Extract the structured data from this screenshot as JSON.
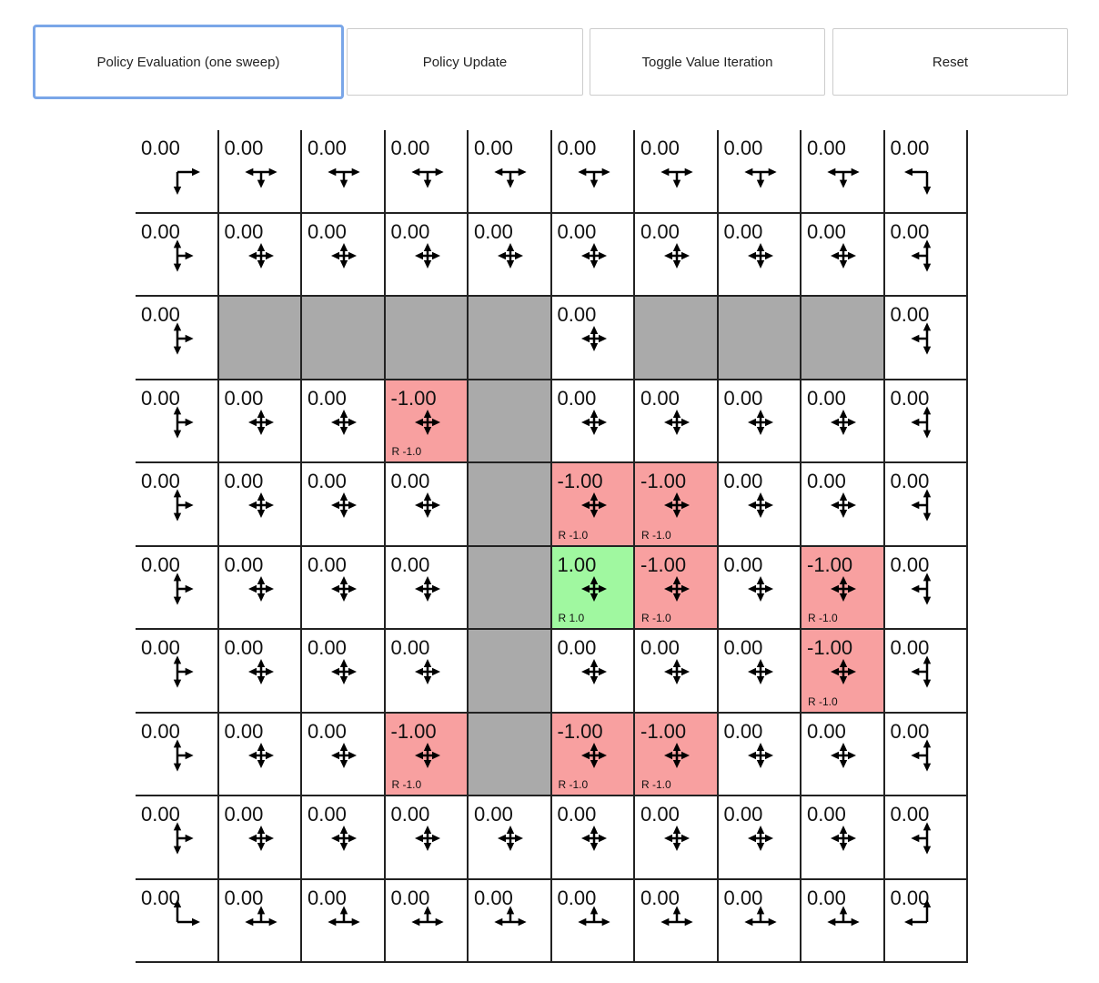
{
  "buttons": [
    {
      "label": "Policy Evaluation (one sweep)",
      "focused": true
    },
    {
      "label": "Policy Update"
    },
    {
      "label": "Toggle Value Iteration"
    },
    {
      "label": "Reset"
    }
  ],
  "colors": {
    "wall": "#aaaaaa",
    "negative": "#f8a0a0",
    "positive": "#a0f8a0"
  },
  "grid": {
    "rows": 10,
    "cols": 10,
    "walls": [
      [
        2,
        1
      ],
      [
        2,
        2
      ],
      [
        2,
        3
      ],
      [
        2,
        4
      ],
      [
        2,
        6
      ],
      [
        2,
        7
      ],
      [
        2,
        8
      ],
      [
        3,
        4
      ],
      [
        4,
        4
      ],
      [
        5,
        4
      ],
      [
        6,
        4
      ],
      [
        7,
        4
      ]
    ],
    "rewards": [
      {
        "r": 3,
        "c": 3,
        "value": "-1.00",
        "label": "R -1.0"
      },
      {
        "r": 4,
        "c": 5,
        "value": "-1.00",
        "label": "R -1.0"
      },
      {
        "r": 4,
        "c": 6,
        "value": "-1.00",
        "label": "R -1.0"
      },
      {
        "r": 5,
        "c": 5,
        "value": "1.00",
        "label": "R 1.0"
      },
      {
        "r": 5,
        "c": 6,
        "value": "-1.00",
        "label": "R -1.0"
      },
      {
        "r": 5,
        "c": 8,
        "value": "-1.00",
        "label": "R -1.0"
      },
      {
        "r": 6,
        "c": 8,
        "value": "-1.00",
        "label": "R -1.0"
      },
      {
        "r": 7,
        "c": 3,
        "value": "-1.00",
        "label": "R -1.0"
      },
      {
        "r": 7,
        "c": 5,
        "value": "-1.00",
        "label": "R -1.0"
      },
      {
        "r": 7,
        "c": 6,
        "value": "-1.00",
        "label": "R -1.0"
      }
    ],
    "default_value": "0.00",
    "policy_note_actions": "arrows show allowed actions (L,U,R,D) with uniform probability"
  }
}
